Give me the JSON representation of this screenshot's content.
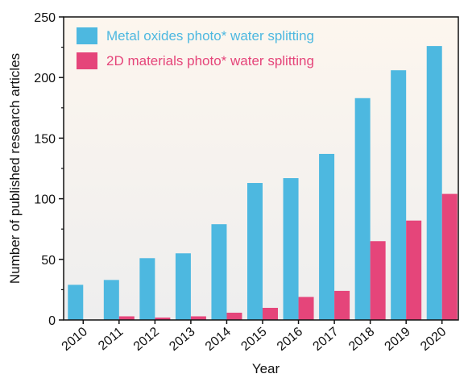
{
  "chart_data": {
    "type": "bar",
    "categories": [
      "2010",
      "2011",
      "2012",
      "2013",
      "2014",
      "2015",
      "2016",
      "2017",
      "2018",
      "2019",
      "2020"
    ],
    "series": [
      {
        "name": "Metal oxides photo* water splitting",
        "values": [
          29,
          33,
          51,
          55,
          79,
          113,
          117,
          137,
          183,
          206,
          226
        ],
        "color": "#4db8e0"
      },
      {
        "name": "2D materials photo* water splitting",
        "values": [
          0,
          3,
          2,
          3,
          6,
          10,
          19,
          24,
          65,
          82,
          104
        ],
        "color": "#e5457a"
      }
    ],
    "xlabel": "Year",
    "ylabel": "Number of published research articles",
    "ylim": [
      0,
      250
    ],
    "yticks": [
      0,
      50,
      100,
      150,
      200,
      250
    ],
    "grid": false,
    "legend_position": "top-left",
    "background_gradient": [
      "#fdf6ee",
      "#eeeeee"
    ]
  }
}
